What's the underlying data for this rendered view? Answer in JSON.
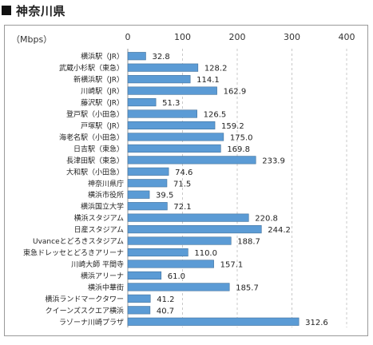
{
  "heading": "神奈川県",
  "chart_data": {
    "type": "bar",
    "orientation": "horizontal",
    "unit_label": "（Mbps）",
    "xlim": [
      0,
      400
    ],
    "ticks": [
      "0",
      "100",
      "200",
      "300",
      "400"
    ],
    "grid": "vertical dashed",
    "bar_color": "#5b9bd5",
    "categories": [
      "横浜駅（JR）",
      "武蔵小杉駅（東急）",
      "新横浜駅（JR）",
      "川崎駅（JR）",
      "藤沢駅（JR）",
      "登戸駅（小田急）",
      "戸塚駅（JR）",
      "海老名駅（小田急）",
      "日吉駅（東急）",
      "長津田駅（東急）",
      "大和駅（小田急）",
      "神奈川県庁",
      "横浜市役所",
      "横浜国立大学",
      "横浜スタジアム",
      "日産スタジアム",
      "Uvanceとどろきスタジアム",
      "東急ドレッセとどろきアリーナ",
      "川崎大師 平間寺",
      "横浜アリーナ",
      "横浜中華街",
      "横浜ランドマークタワー",
      "クイーンズスクエア横浜",
      "ラゾーナ川崎プラザ"
    ],
    "values": [
      32.8,
      128.2,
      114.1,
      162.9,
      51.3,
      126.5,
      159.2,
      175.0,
      169.8,
      233.9,
      74.6,
      71.5,
      39.5,
      72.1,
      220.8,
      244.2,
      188.7,
      110.0,
      157.1,
      61.0,
      185.7,
      41.2,
      40.7,
      312.6
    ],
    "value_labels": [
      "32.8",
      "128.2",
      "114.1",
      "162.9",
      "51.3",
      "126.5",
      "159.2",
      "175.0",
      "169.8",
      "233.9",
      "74.6",
      "71.5",
      "39.5",
      "72.1",
      "220.8",
      "244.2",
      "188.7",
      "110.0",
      "157.1",
      "61.0",
      "185.7",
      "41.2",
      "40.7",
      "312.6"
    ]
  }
}
